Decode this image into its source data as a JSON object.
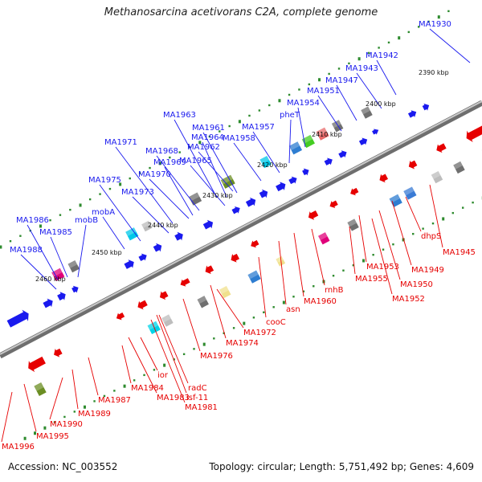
{
  "title": "Methanosarcina acetivorans C2A, complete genome",
  "footer": {
    "accession": "Accession: NC_003552",
    "summary": "Topology: circular; Length: 5,751,492 bp; Genes: 4,609"
  },
  "colors": {
    "forward_strand": "#1a1aee",
    "reverse_strand": "#e60000",
    "backbone": "#8c8c8c",
    "tick": "#2e8b2e"
  },
  "kbp_labels": [
    "2390 kbp",
    "2400 kbp",
    "2410 kbp",
    "2420 kbp",
    "2430 kbp",
    "2440 kbp",
    "2450 kbp",
    "2460 kbp"
  ],
  "forward_labels": [
    "MA1930",
    "MA1942",
    "MA1943",
    "MA1947",
    "MA1951",
    "MA1954",
    "pheT",
    "MA1957",
    "MA1958",
    "MA1961",
    "MA1962",
    "MA1963",
    "MA1964",
    "MA1965",
    "MA1968",
    "MA1969",
    "MA1970",
    "MA1971",
    "MA1973",
    "MA1975",
    "mobA",
    "mobB",
    "MA1985",
    "MA1986",
    "MA1988"
  ],
  "reverse_labels": [
    "dhpS",
    "MA1945",
    "MA1949",
    "MA1950",
    "MA1952",
    "MA1953",
    "MA1955",
    "rnhB",
    "MA1960",
    "asn",
    "cooC",
    "MA1972",
    "MA1974",
    "MA1976",
    "radC",
    "isf-11",
    "MA1981",
    "ior",
    "MA1983",
    "MA1984",
    "MA1987",
    "MA1989",
    "MA1990",
    "MA1995",
    "MA1996"
  ]
}
